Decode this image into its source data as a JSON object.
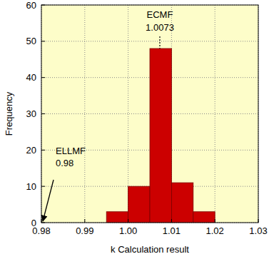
{
  "chart_data": {
    "type": "histogram",
    "x_label": "k Calculation result",
    "y_label": "Frequency",
    "bins": [
      0.995,
      1.0,
      1.005,
      1.01,
      1.015,
      1.02
    ],
    "values": [
      3,
      10,
      48,
      11,
      3
    ],
    "color": "#cc0000",
    "xlim": [
      0.98,
      1.03
    ],
    "ylim": [
      0,
      60
    ],
    "xticks": [
      0.98,
      0.99,
      {
        "value": 1.0,
        "label": "1.00"
      },
      1.01,
      1.02,
      1.03
    ],
    "yticks": [
      0,
      10,
      20,
      30,
      40,
      50,
      60
    ],
    "grid": true,
    "annotations": [
      {
        "label": "ECMF",
        "x": 1.0073,
        "y": 48
      },
      {
        "label": "ELLMF",
        "x": 0.98,
        "y": 0
      }
    ]
  }
}
